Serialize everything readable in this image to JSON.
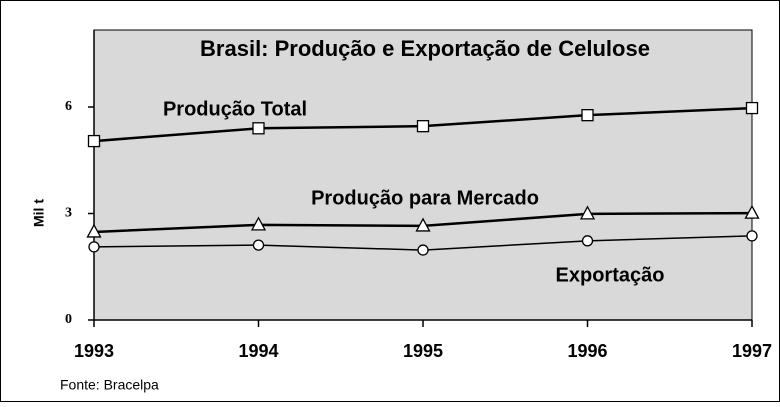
{
  "chart_data": {
    "type": "line",
    "title": "Brasil: Produção e Exportação de Celulose",
    "y_label": "Mil t",
    "source": "Fonte: Bracelpa",
    "x": [
      1993,
      1994,
      1995,
      1996,
      1997
    ],
    "xlim": [
      1993,
      1997
    ],
    "xticks": [
      1993,
      1994,
      1995,
      1996,
      1997
    ],
    "ylim": [
      0,
      7
    ],
    "yticks": [
      0,
      3,
      6
    ],
    "series": [
      {
        "name": "Produção Total",
        "color": "#000000",
        "marker": "square",
        "values": [
          5.04,
          5.4,
          5.46,
          5.77,
          5.97
        ]
      },
      {
        "name": "Produção para Mercado",
        "color": "#000000",
        "marker": "triangle",
        "values": [
          2.48,
          2.68,
          2.65,
          2.99,
          3.01
        ]
      },
      {
        "name": "Exportação",
        "color": "#000000",
        "marker": "circle",
        "values": [
          2.06,
          2.11,
          1.97,
          2.23,
          2.37
        ]
      }
    ]
  }
}
